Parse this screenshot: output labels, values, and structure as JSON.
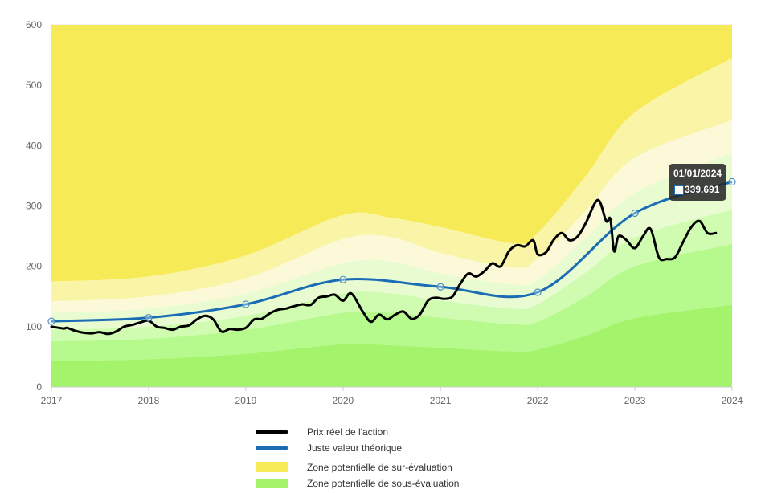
{
  "chart_data": {
    "type": "area",
    "y_ticks": [
      "0",
      "100",
      "200",
      "300",
      "400",
      "500",
      "600"
    ],
    "x_ticks": [
      "2017",
      "2018",
      "2019",
      "2020",
      "2021",
      "2022",
      "2023",
      "2024"
    ],
    "ylim": [
      0,
      600
    ],
    "xlim": [
      "2017-01-01",
      "2024-01-01"
    ],
    "grid": true,
    "legend_position": "bottom",
    "colors": {
      "price": "#000000",
      "fair_value": "#1a6cb4",
      "over_1": "#f7ea57",
      "over_2": "#faf4a6",
      "over_3": "#fcf9d8",
      "under_1": "#e9fcd1",
      "under_2": "#cffcb0",
      "under_3": "#b6f98d",
      "under_4": "#a3f46a"
    },
    "fair_value": {
      "dates": [
        "2017-01-01",
        "2018-01-01",
        "2019-01-01",
        "2020-01-01",
        "2021-01-01",
        "2022-01-01",
        "2023-01-01",
        "2024-01-01"
      ],
      "values": [
        109,
        115,
        137,
        178,
        166,
        157,
        288,
        340
      ]
    },
    "bands": {
      "dates": [
        "2017-01-01",
        "2018-01-01",
        "2019-01-01",
        "2020-01-01",
        "2020-07-01",
        "2021-01-01",
        "2021-10-01",
        "2022-01-01",
        "2022-07-01",
        "2023-01-01",
        "2024-01-01"
      ],
      "upper_3": [
        175,
        183,
        218,
        285,
        280,
        265,
        238,
        255,
        350,
        455,
        545
      ],
      "upper_2": [
        142,
        150,
        180,
        245,
        248,
        222,
        198,
        213,
        292,
        380,
        442
      ],
      "upper_1": [
        123,
        130,
        155,
        205,
        208,
        188,
        170,
        178,
        248,
        322,
        388
      ],
      "lower_1": [
        95,
        100,
        118,
        155,
        155,
        143,
        130,
        137,
        190,
        248,
        294
      ],
      "lower_2": [
        76,
        80,
        95,
        123,
        123,
        115,
        104,
        108,
        150,
        200,
        237
      ],
      "lower_3": [
        43,
        46,
        55,
        71,
        69,
        65,
        59,
        62,
        85,
        114,
        136
      ]
    },
    "price": {
      "dates": [
        "2017-01-01",
        "2017-02-15",
        "2017-03-01",
        "2017-04-01",
        "2017-05-01",
        "2017-06-01",
        "2017-07-01",
        "2017-08-01",
        "2017-09-01",
        "2017-10-01",
        "2017-11-01",
        "2017-12-01",
        "2018-01-01",
        "2018-02-01",
        "2018-03-01",
        "2018-04-01",
        "2018-05-01",
        "2018-06-01",
        "2018-07-01",
        "2018-08-01",
        "2018-09-01",
        "2018-10-01",
        "2018-11-01",
        "2018-12-01",
        "2019-01-01",
        "2019-02-01",
        "2019-03-01",
        "2019-04-01",
        "2019-05-01",
        "2019-06-01",
        "2019-07-01",
        "2019-08-01",
        "2019-09-01",
        "2019-10-01",
        "2019-11-01",
        "2019-12-01",
        "2020-01-01",
        "2020-02-01",
        "2020-03-15",
        "2020-04-15",
        "2020-05-15",
        "2020-06-15",
        "2020-07-15",
        "2020-08-15",
        "2020-09-15",
        "2020-10-15",
        "2020-11-15",
        "2020-12-15",
        "2021-01-15",
        "2021-02-15",
        "2021-03-15",
        "2021-04-15",
        "2021-05-15",
        "2021-06-15",
        "2021-07-15",
        "2021-08-15",
        "2021-09-15",
        "2021-10-15",
        "2021-11-15",
        "2021-12-15",
        "2022-01-01",
        "2022-02-01",
        "2022-03-01",
        "2022-04-01",
        "2022-05-01",
        "2022-06-01",
        "2022-07-01",
        "2022-08-15",
        "2022-09-15",
        "2022-10-01",
        "2022-10-15",
        "2022-11-01",
        "2022-12-01",
        "2023-01-01",
        "2023-02-01",
        "2023-03-01",
        "2023-04-01",
        "2023-05-01",
        "2023-06-01",
        "2023-07-01",
        "2023-08-01",
        "2023-09-01",
        "2023-10-01",
        "2023-11-01"
      ],
      "values": [
        100,
        97,
        98,
        93,
        90,
        89,
        91,
        88,
        92,
        100,
        103,
        107,
        110,
        100,
        98,
        95,
        100,
        102,
        112,
        118,
        112,
        92,
        96,
        95,
        98,
        112,
        113,
        122,
        128,
        130,
        134,
        137,
        136,
        148,
        150,
        153,
        143,
        155,
        125,
        108,
        120,
        112,
        120,
        125,
        113,
        120,
        143,
        148,
        146,
        150,
        170,
        188,
        183,
        192,
        205,
        200,
        225,
        235,
        233,
        243,
        220,
        223,
        243,
        255,
        243,
        250,
        272,
        310,
        275,
        278,
        225,
        250,
        243,
        230,
        250,
        262,
        215,
        212,
        215,
        240,
        265,
        275,
        255,
        255
      ]
    },
    "markers": {
      "dates": [
        "2017-01-01",
        "2018-01-01",
        "2019-01-01",
        "2020-01-01",
        "2021-01-01",
        "2022-01-01",
        "2023-01-01",
        "2024-01-01"
      ],
      "values": [
        109,
        115,
        137,
        178,
        166,
        157,
        288,
        340
      ]
    },
    "tooltip": {
      "date": "01/01/2024",
      "value": "339.691"
    },
    "legend": [
      {
        "label": "Prix réel de l'action",
        "kind": "line",
        "color": "#000000"
      },
      {
        "label": "Juste valeur théorique",
        "kind": "line",
        "color": "#1a6cb4"
      },
      {
        "label": "Zone potentielle de sur-évaluation",
        "kind": "box",
        "color": "#f7ea57"
      },
      {
        "label": "Zone potentielle de sous-évaluation",
        "kind": "box",
        "color": "#a3f46a"
      }
    ]
  }
}
